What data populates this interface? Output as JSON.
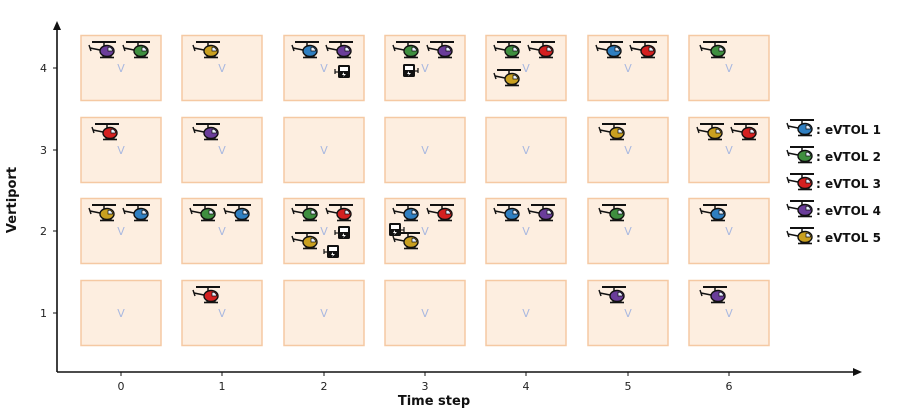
{
  "xlabel": "Time step",
  "ylabel": "Vertiport",
  "x_ticks": [
    "0",
    "1",
    "2",
    "3",
    "4",
    "5",
    "6"
  ],
  "y_ticks": [
    "1",
    "2",
    "3",
    "4"
  ],
  "cell_label": "V",
  "legend": [
    {
      "id": 1,
      "label": ": eVTOL 1",
      "color": "#2f7fc1"
    },
    {
      "id": 2,
      "label": ": eVTOL 2",
      "color": "#3f8f3f"
    },
    {
      "id": 3,
      "label": ": eVTOL 3",
      "color": "#d42020"
    },
    {
      "id": 4,
      "label": ": eVTOL 4",
      "color": "#6a3d9a"
    },
    {
      "id": 5,
      "label": ": eVTOL 5",
      "color": "#c9a020"
    }
  ],
  "colors": {
    "cell_fill": "#fdeee0",
    "cell_border": "#f5c9a3",
    "axis": "#111111"
  },
  "cells": [
    {
      "t": 0,
      "v": 4,
      "aircraft": [
        4,
        2
      ],
      "chargers": 0
    },
    {
      "t": 1,
      "v": 4,
      "aircraft": [
        5
      ],
      "chargers": 0
    },
    {
      "t": 2,
      "v": 4,
      "aircraft": [
        1,
        4
      ],
      "chargers": 1
    },
    {
      "t": 3,
      "v": 4,
      "aircraft": [
        2,
        4
      ],
      "chargers": 1
    },
    {
      "t": 4,
      "v": 4,
      "aircraft": [
        2,
        3,
        5
      ],
      "chargers": 0
    },
    {
      "t": 5,
      "v": 4,
      "aircraft": [
        1,
        3
      ],
      "chargers": 0
    },
    {
      "t": 6,
      "v": 4,
      "aircraft": [
        2
      ],
      "chargers": 0
    },
    {
      "t": 0,
      "v": 3,
      "aircraft": [
        3
      ],
      "chargers": 0
    },
    {
      "t": 1,
      "v": 3,
      "aircraft": [
        4
      ],
      "chargers": 0
    },
    {
      "t": 2,
      "v": 3,
      "aircraft": [],
      "chargers": 0
    },
    {
      "t": 3,
      "v": 3,
      "aircraft": [],
      "chargers": 0
    },
    {
      "t": 4,
      "v": 3,
      "aircraft": [],
      "chargers": 0
    },
    {
      "t": 5,
      "v": 3,
      "aircraft": [
        5
      ],
      "chargers": 0
    },
    {
      "t": 6,
      "v": 3,
      "aircraft": [
        5,
        3
      ],
      "chargers": 0
    },
    {
      "t": 0,
      "v": 2,
      "aircraft": [
        5,
        1
      ],
      "chargers": 0
    },
    {
      "t": 1,
      "v": 2,
      "aircraft": [
        2,
        1
      ],
      "chargers": 0
    },
    {
      "t": 2,
      "v": 2,
      "aircraft": [
        2,
        3,
        5
      ],
      "chargers": 2
    },
    {
      "t": 3,
      "v": 2,
      "aircraft": [
        1,
        3,
        5
      ],
      "chargers": 1
    },
    {
      "t": 4,
      "v": 2,
      "aircraft": [
        1,
        4
      ],
      "chargers": 0
    },
    {
      "t": 5,
      "v": 2,
      "aircraft": [
        2
      ],
      "chargers": 0
    },
    {
      "t": 6,
      "v": 2,
      "aircraft": [
        1
      ],
      "chargers": 0
    },
    {
      "t": 0,
      "v": 1,
      "aircraft": [],
      "chargers": 0
    },
    {
      "t": 1,
      "v": 1,
      "aircraft": [
        3
      ],
      "chargers": 0
    },
    {
      "t": 2,
      "v": 1,
      "aircraft": [],
      "chargers": 0
    },
    {
      "t": 3,
      "v": 1,
      "aircraft": [],
      "chargers": 0
    },
    {
      "t": 4,
      "v": 1,
      "aircraft": [],
      "chargers": 0
    },
    {
      "t": 5,
      "v": 1,
      "aircraft": [
        4
      ],
      "chargers": 0
    },
    {
      "t": 6,
      "v": 1,
      "aircraft": [
        4
      ],
      "chargers": 0
    }
  ]
}
